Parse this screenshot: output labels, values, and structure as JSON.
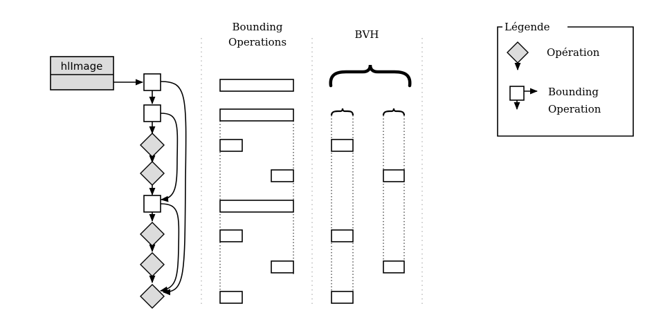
{
  "hlimage": {
    "label": "hlImage"
  },
  "columns": {
    "bounding_ops_title_line1": "Bounding",
    "bounding_ops_title_line2": "Operations",
    "bvh_title": "BVH"
  },
  "legend": {
    "title": "Légende",
    "operation_label": "Opération",
    "bounding_label_line1": "Bounding",
    "bounding_label_line2": "Operation"
  }
}
